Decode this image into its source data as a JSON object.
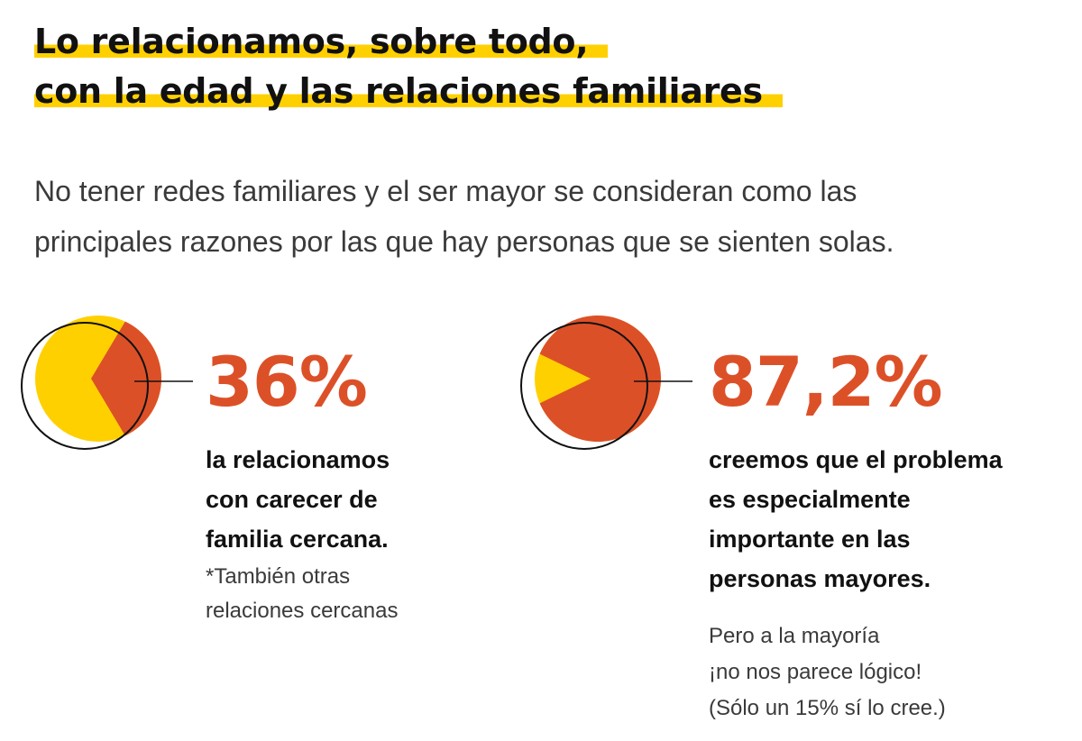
{
  "title": {
    "line1": "Lo relacionamos, sobre todo,",
    "line2": "con la edad y las relaciones familiares"
  },
  "subtitle": {
    "line1": "No tener redes familiares y el ser mayor se consideran como las",
    "line2": "principales razones por las que hay personas que se sienten solas."
  },
  "colors": {
    "accent_yellow": "#FFD000",
    "accent_red": "#DC5028",
    "text": "#111111"
  },
  "chart_data": [
    {
      "type": "pie",
      "value_percent": 36,
      "label": "36%",
      "description": [
        "la relacionamos",
        "con carecer de",
        "familia cercana."
      ],
      "note": [
        "*También otras",
        "relaciones cercanas"
      ]
    },
    {
      "type": "pie",
      "value_percent": 87.2,
      "label": "87,2%",
      "description": [
        "creemos que el problema",
        "es especialmente",
        "importante  en las",
        "personas mayores."
      ],
      "note": [
        "Pero a la mayoría",
        "¡no nos parece lógico!",
        "(Sólo un 15% sí lo cree.)"
      ]
    }
  ]
}
